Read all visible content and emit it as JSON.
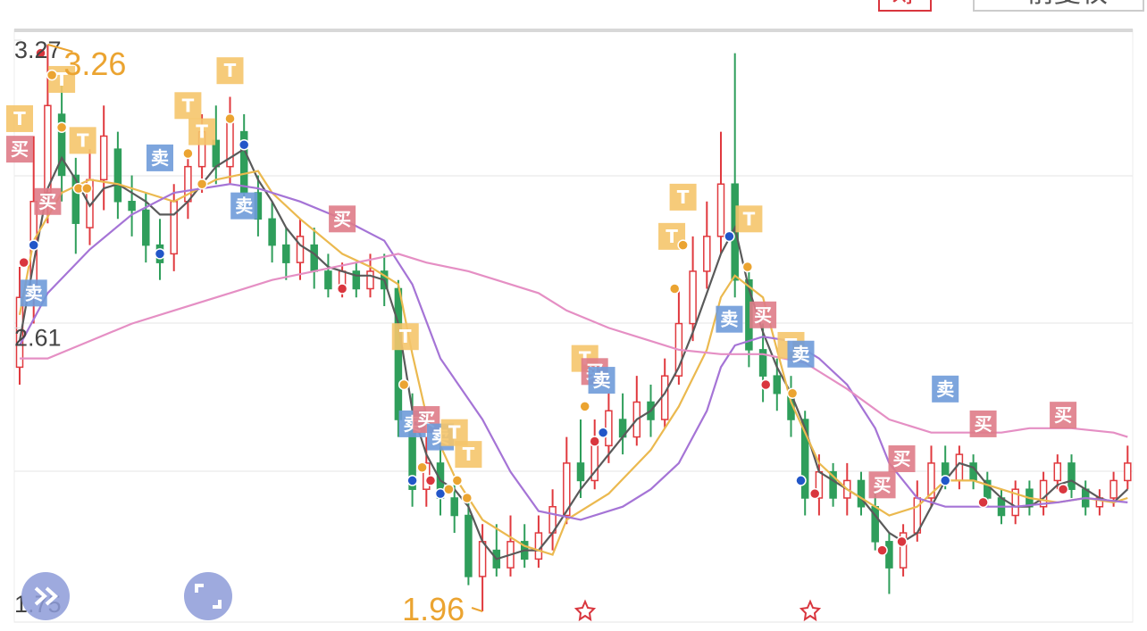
{
  "header": {
    "chips_button": "筹",
    "adjust_button": "前复权"
  },
  "chart_data": {
    "type": "candlestick",
    "ylim": [
      1.96,
      3.27
    ],
    "yticks": [
      3.27,
      2.61
    ],
    "bottom_label": "1.75",
    "up_color": "#e0393e",
    "down_color": "#2f9e5b",
    "open": [
      2.52,
      2.68,
      2.92,
      3.1,
      2.96,
      2.84,
      2.95,
      3.02,
      2.9,
      2.88,
      2.8,
      2.78,
      2.9,
      2.98,
      3.04,
      2.98,
      3.06,
      2.92,
      2.86,
      2.8,
      2.76,
      2.8,
      2.74,
      2.7,
      2.74,
      2.7,
      2.74,
      2.7,
      2.4,
      2.24,
      2.3,
      2.22,
      2.18,
      2.04,
      2.1,
      2.06,
      2.12,
      2.08,
      2.14,
      2.18,
      2.3,
      2.26,
      2.34,
      2.4,
      2.36,
      2.44,
      2.4,
      2.5,
      2.62,
      2.74,
      2.82,
      2.94,
      2.72,
      2.56,
      2.5,
      2.46,
      2.4,
      2.22,
      2.28,
      2.22,
      2.26,
      2.2,
      2.12,
      2.06,
      2.14,
      2.22,
      2.3,
      2.26,
      2.3,
      2.26,
      2.22,
      2.18,
      2.24,
      2.2,
      2.26,
      2.3,
      2.24,
      2.2,
      2.22,
      2.26
    ],
    "close": [
      2.68,
      2.9,
      3.12,
      2.96,
      2.85,
      2.95,
      3.05,
      2.9,
      2.88,
      2.8,
      2.76,
      2.9,
      2.98,
      3.06,
      2.98,
      3.08,
      2.92,
      2.86,
      2.8,
      2.76,
      2.82,
      2.74,
      2.7,
      2.74,
      2.7,
      2.74,
      2.7,
      2.4,
      2.24,
      2.3,
      2.22,
      2.18,
      2.04,
      2.12,
      2.06,
      2.12,
      2.08,
      2.14,
      2.2,
      2.3,
      2.26,
      2.34,
      2.42,
      2.36,
      2.44,
      2.4,
      2.5,
      2.62,
      2.74,
      2.82,
      2.94,
      2.72,
      2.56,
      2.5,
      2.46,
      2.4,
      2.22,
      2.28,
      2.22,
      2.26,
      2.2,
      2.12,
      2.06,
      2.14,
      2.22,
      2.3,
      2.26,
      2.32,
      2.26,
      2.22,
      2.18,
      2.24,
      2.2,
      2.26,
      2.3,
      2.24,
      2.2,
      2.22,
      2.26,
      2.3
    ],
    "low": [
      2.48,
      2.62,
      2.85,
      2.9,
      2.78,
      2.8,
      2.88,
      2.86,
      2.82,
      2.76,
      2.72,
      2.74,
      2.86,
      2.92,
      2.94,
      2.94,
      2.88,
      2.82,
      2.76,
      2.72,
      2.72,
      2.7,
      2.68,
      2.68,
      2.68,
      2.68,
      2.66,
      2.36,
      2.2,
      2.2,
      2.18,
      2.14,
      2.02,
      1.96,
      2.04,
      2.04,
      2.06,
      2.06,
      2.1,
      2.16,
      2.22,
      2.24,
      2.3,
      2.32,
      2.34,
      2.36,
      2.38,
      2.48,
      2.58,
      2.7,
      2.78,
      2.68,
      2.52,
      2.44,
      2.42,
      2.36,
      2.18,
      2.18,
      2.2,
      2.18,
      2.18,
      2.1,
      2.0,
      2.04,
      2.12,
      2.2,
      2.24,
      2.24,
      2.24,
      2.2,
      2.16,
      2.16,
      2.18,
      2.18,
      2.24,
      2.22,
      2.18,
      2.18,
      2.2,
      2.24
    ],
    "high": [
      2.75,
      3.05,
      3.26,
      3.18,
      3.0,
      3.02,
      3.12,
      3.06,
      2.96,
      2.92,
      2.86,
      2.94,
      3.02,
      3.1,
      3.12,
      3.14,
      3.1,
      2.96,
      2.9,
      2.84,
      2.86,
      2.84,
      2.78,
      2.76,
      2.76,
      2.78,
      2.78,
      2.72,
      2.46,
      2.36,
      2.34,
      2.26,
      2.22,
      2.16,
      2.16,
      2.18,
      2.16,
      2.18,
      2.24,
      2.36,
      2.4,
      2.4,
      2.46,
      2.46,
      2.5,
      2.48,
      2.54,
      2.7,
      2.82,
      2.9,
      3.06,
      3.24,
      2.76,
      2.62,
      2.54,
      2.5,
      2.42,
      2.32,
      2.3,
      2.3,
      2.28,
      2.24,
      2.14,
      2.16,
      2.26,
      2.34,
      2.34,
      2.34,
      2.32,
      2.28,
      2.24,
      2.26,
      2.26,
      2.28,
      2.32,
      2.32,
      2.26,
      2.24,
      2.28,
      2.34
    ],
    "lines": [
      {
        "color": "#5a5a5a",
        "x": [
          0,
          1,
          2,
          3,
          4,
          5,
          6,
          7,
          8,
          9,
          10,
          11,
          12,
          13,
          14,
          15,
          16,
          17,
          18,
          19,
          20,
          21,
          22,
          23,
          24,
          25,
          26,
          27,
          28,
          29,
          30,
          31,
          32,
          33,
          34,
          35,
          36,
          37,
          38,
          39,
          40,
          41,
          42,
          43,
          44,
          45,
          46,
          47,
          48,
          49,
          50,
          51,
          52,
          53,
          54,
          55,
          56,
          57,
          58,
          59,
          60,
          61,
          62,
          63,
          64,
          65,
          66,
          67,
          68,
          69,
          70,
          71,
          72,
          73,
          74,
          75,
          76,
          77,
          78,
          79
        ],
        "values": [
          2.58,
          2.76,
          2.93,
          3.0,
          2.95,
          2.89,
          2.93,
          2.94,
          2.92,
          2.9,
          2.87,
          2.87,
          2.9,
          2.94,
          2.98,
          3.0,
          3.02,
          2.95,
          2.9,
          2.84,
          2.8,
          2.78,
          2.75,
          2.74,
          2.73,
          2.73,
          2.72,
          2.62,
          2.42,
          2.32,
          2.26,
          2.24,
          2.2,
          2.12,
          2.08,
          2.09,
          2.1,
          2.1,
          2.14,
          2.19,
          2.24,
          2.28,
          2.32,
          2.36,
          2.4,
          2.42,
          2.46,
          2.52,
          2.6,
          2.69,
          2.78,
          2.84,
          2.7,
          2.6,
          2.52,
          2.46,
          2.38,
          2.28,
          2.26,
          2.24,
          2.22,
          2.18,
          2.14,
          2.12,
          2.14,
          2.2,
          2.26,
          2.3,
          2.29,
          2.25,
          2.22,
          2.2,
          2.2,
          2.22,
          2.25,
          2.26,
          2.24,
          2.22,
          2.21,
          2.24
        ]
      },
      {
        "color": "#ebb94f",
        "x": [
          0,
          1,
          3,
          5,
          7,
          9,
          11,
          14,
          17,
          18,
          20,
          23,
          25,
          27,
          28,
          29,
          31,
          33,
          36,
          38,
          39,
          42,
          45,
          47,
          49,
          50,
          51,
          53,
          54,
          55,
          57,
          59,
          61,
          62,
          64,
          66,
          68,
          70,
          72,
          74,
          76,
          78,
          79
        ],
        "values": [
          2.64,
          2.81,
          2.92,
          2.95,
          2.94,
          2.92,
          2.9,
          2.95,
          2.97,
          2.92,
          2.86,
          2.78,
          2.75,
          2.71,
          2.55,
          2.41,
          2.27,
          2.17,
          2.11,
          2.09,
          2.17,
          2.23,
          2.33,
          2.43,
          2.56,
          2.68,
          2.73,
          2.68,
          2.56,
          2.44,
          2.3,
          2.24,
          2.2,
          2.18,
          2.2,
          2.26,
          2.26,
          2.24,
          2.22,
          2.21,
          2.22,
          2.21,
          2.22
        ]
      },
      {
        "color": "#a574d6",
        "x": [
          0,
          2,
          5,
          8,
          11,
          15,
          17,
          20,
          23,
          26,
          28,
          30,
          33,
          35,
          37,
          40,
          43,
          45,
          47,
          49,
          50,
          51,
          53,
          55,
          57,
          59,
          61,
          62,
          64,
          66,
          69,
          71,
          74,
          76,
          79
        ],
        "values": [
          2.57,
          2.69,
          2.79,
          2.87,
          2.92,
          2.94,
          2.93,
          2.9,
          2.86,
          2.81,
          2.71,
          2.54,
          2.4,
          2.28,
          2.19,
          2.17,
          2.2,
          2.24,
          2.3,
          2.42,
          2.52,
          2.57,
          2.59,
          2.58,
          2.54,
          2.48,
          2.38,
          2.3,
          2.22,
          2.2,
          2.2,
          2.2,
          2.21,
          2.22,
          2.21
        ]
      },
      {
        "color": "#e58fc4",
        "x": [
          0,
          2,
          5,
          8,
          11,
          15,
          18,
          21,
          24,
          27,
          29,
          32,
          34,
          37,
          39,
          42,
          45,
          47,
          50,
          53,
          56,
          59,
          62,
          65,
          67,
          70,
          72,
          75,
          78,
          79
        ],
        "values": [
          2.54,
          2.54,
          2.58,
          2.62,
          2.65,
          2.69,
          2.72,
          2.74,
          2.76,
          2.78,
          2.76,
          2.74,
          2.72,
          2.69,
          2.65,
          2.61,
          2.58,
          2.56,
          2.55,
          2.55,
          2.53,
          2.47,
          2.4,
          2.37,
          2.37,
          2.37,
          2.38,
          2.38,
          2.37,
          2.36
        ]
      }
    ],
    "dots": [
      {
        "x": 0.3,
        "y": 2.76,
        "color": "#d9363e"
      },
      {
        "x": 1.5,
        "y": 3.24,
        "color": "#d9363e"
      },
      {
        "x": 1,
        "y": 2.8,
        "color": "#2256c8"
      },
      {
        "x": 2.3,
        "y": 3.19,
        "color": "#eba431"
      },
      {
        "x": 3,
        "y": 3.07,
        "color": "#eba431"
      },
      {
        "x": 4.2,
        "y": 2.93,
        "color": "#eba431"
      },
      {
        "x": 4.8,
        "y": 2.93,
        "color": "#eba431"
      },
      {
        "x": 10,
        "y": 2.78,
        "color": "#2256c8"
      },
      {
        "x": 12,
        "y": 3.01,
        "color": "#eba431"
      },
      {
        "x": 13,
        "y": 2.94,
        "color": "#eba431"
      },
      {
        "x": 15,
        "y": 3.09,
        "color": "#eba431"
      },
      {
        "x": 16,
        "y": 3.03,
        "color": "#2256c8"
      },
      {
        "x": 23,
        "y": 2.7,
        "color": "#d9363e"
      },
      {
        "x": 27.4,
        "y": 2.48,
        "color": "#eba431"
      },
      {
        "x": 28,
        "y": 2.26,
        "color": "#2256c8"
      },
      {
        "x": 28.7,
        "y": 2.29,
        "color": "#eba431"
      },
      {
        "x": 29.3,
        "y": 2.26,
        "color": "#d9363e"
      },
      {
        "x": 30,
        "y": 2.23,
        "color": "#2256c8"
      },
      {
        "x": 30.6,
        "y": 2.24,
        "color": "#eba431"
      },
      {
        "x": 31.2,
        "y": 2.26,
        "color": "#eba431"
      },
      {
        "x": 31.9,
        "y": 2.22,
        "color": "#eba431"
      },
      {
        "x": 40.3,
        "y": 2.43,
        "color": "#eba431"
      },
      {
        "x": 41,
        "y": 2.35,
        "color": "#d9363e"
      },
      {
        "x": 41.6,
        "y": 2.37,
        "color": "#2256c8"
      },
      {
        "x": 46.7,
        "y": 2.7,
        "color": "#eba431"
      },
      {
        "x": 47.3,
        "y": 2.8,
        "color": "#eba431"
      },
      {
        "x": 50.6,
        "y": 2.82,
        "color": "#2256c8"
      },
      {
        "x": 51.9,
        "y": 2.75,
        "color": "#eba431"
      },
      {
        "x": 53.2,
        "y": 2.48,
        "color": "#d9363e"
      },
      {
        "x": 55.1,
        "y": 2.46,
        "color": "#eba431"
      },
      {
        "x": 55.7,
        "y": 2.26,
        "color": "#2256c8"
      },
      {
        "x": 56.7,
        "y": 2.23,
        "color": "#d9363e"
      },
      {
        "x": 61.5,
        "y": 2.1,
        "color": "#d9363e"
      },
      {
        "x": 62.9,
        "y": 2.12,
        "color": "#d9363e"
      },
      {
        "x": 66,
        "y": 2.26,
        "color": "#2256c8"
      },
      {
        "x": 68.7,
        "y": 2.21,
        "color": "#d9363e"
      },
      {
        "x": 74.4,
        "y": 2.24,
        "color": "#d9363e"
      }
    ],
    "badges": [
      {
        "text": "T",
        "x": 0,
        "y": 3.09,
        "color": "#f5c56b"
      },
      {
        "text": "买",
        "x": 0,
        "y": 3.02,
        "color": "#df7c88"
      },
      {
        "text": "卖",
        "x": 1,
        "y": 2.69,
        "color": "#6f9bd9"
      },
      {
        "text": "买",
        "x": 2,
        "y": 2.9,
        "color": "#df7c88"
      },
      {
        "text": "T",
        "x": 3,
        "y": 3.18,
        "color": "#f5c56b"
      },
      {
        "text": "T",
        "x": 4.5,
        "y": 3.04,
        "color": "#f5c56b"
      },
      {
        "text": "卖",
        "x": 10,
        "y": 3.0,
        "color": "#6f9bd9"
      },
      {
        "text": "T",
        "x": 12,
        "y": 3.12,
        "color": "#f5c56b"
      },
      {
        "text": "T",
        "x": 13,
        "y": 3.06,
        "color": "#f5c56b"
      },
      {
        "text": "T",
        "x": 15,
        "y": 3.2,
        "color": "#f5c56b"
      },
      {
        "text": "卖",
        "x": 16,
        "y": 2.89,
        "color": "#6f9bd9"
      },
      {
        "text": "买",
        "x": 23,
        "y": 2.86,
        "color": "#df7c88"
      },
      {
        "text": "T",
        "x": 27.5,
        "y": 2.59,
        "color": "#f5c56b"
      },
      {
        "text": "卖",
        "x": 28,
        "y": 2.39,
        "color": "#6f9bd9"
      },
      {
        "text": "买",
        "x": 29,
        "y": 2.4,
        "color": "#df7c88"
      },
      {
        "text": "卖",
        "x": 30,
        "y": 2.36,
        "color": "#6f9bd9"
      },
      {
        "text": "T",
        "x": 31,
        "y": 2.37,
        "color": "#f5c56b"
      },
      {
        "text": "T",
        "x": 32,
        "y": 2.32,
        "color": "#f5c56b"
      },
      {
        "text": "T",
        "x": 40.3,
        "y": 2.54,
        "color": "#f5c56b"
      },
      {
        "text": "买",
        "x": 41,
        "y": 2.51,
        "color": "#df7c88"
      },
      {
        "text": "卖",
        "x": 41.5,
        "y": 2.49,
        "color": "#6f9bd9"
      },
      {
        "text": "T",
        "x": 46.5,
        "y": 2.82,
        "color": "#f5c56b"
      },
      {
        "text": "T",
        "x": 47.3,
        "y": 2.91,
        "color": "#f5c56b"
      },
      {
        "text": "T",
        "x": 52,
        "y": 2.86,
        "color": "#f5c56b"
      },
      {
        "text": "卖",
        "x": 50.6,
        "y": 2.63,
        "color": "#6f9bd9"
      },
      {
        "text": "买",
        "x": 53,
        "y": 2.64,
        "color": "#df7c88"
      },
      {
        "text": "T",
        "x": 55,
        "y": 2.57,
        "color": "#f5c56b"
      },
      {
        "text": "卖",
        "x": 55.7,
        "y": 2.55,
        "color": "#6f9bd9"
      },
      {
        "text": "买",
        "x": 61.5,
        "y": 2.25,
        "color": "#df7c88"
      },
      {
        "text": "买",
        "x": 62.9,
        "y": 2.31,
        "color": "#df7c88"
      },
      {
        "text": "卖",
        "x": 66,
        "y": 2.47,
        "color": "#6f9bd9"
      },
      {
        "text": "买",
        "x": 68.7,
        "y": 2.39,
        "color": "#df7c88"
      },
      {
        "text": "买",
        "x": 74.4,
        "y": 2.41,
        "color": "#df7c88"
      }
    ]
  }
}
